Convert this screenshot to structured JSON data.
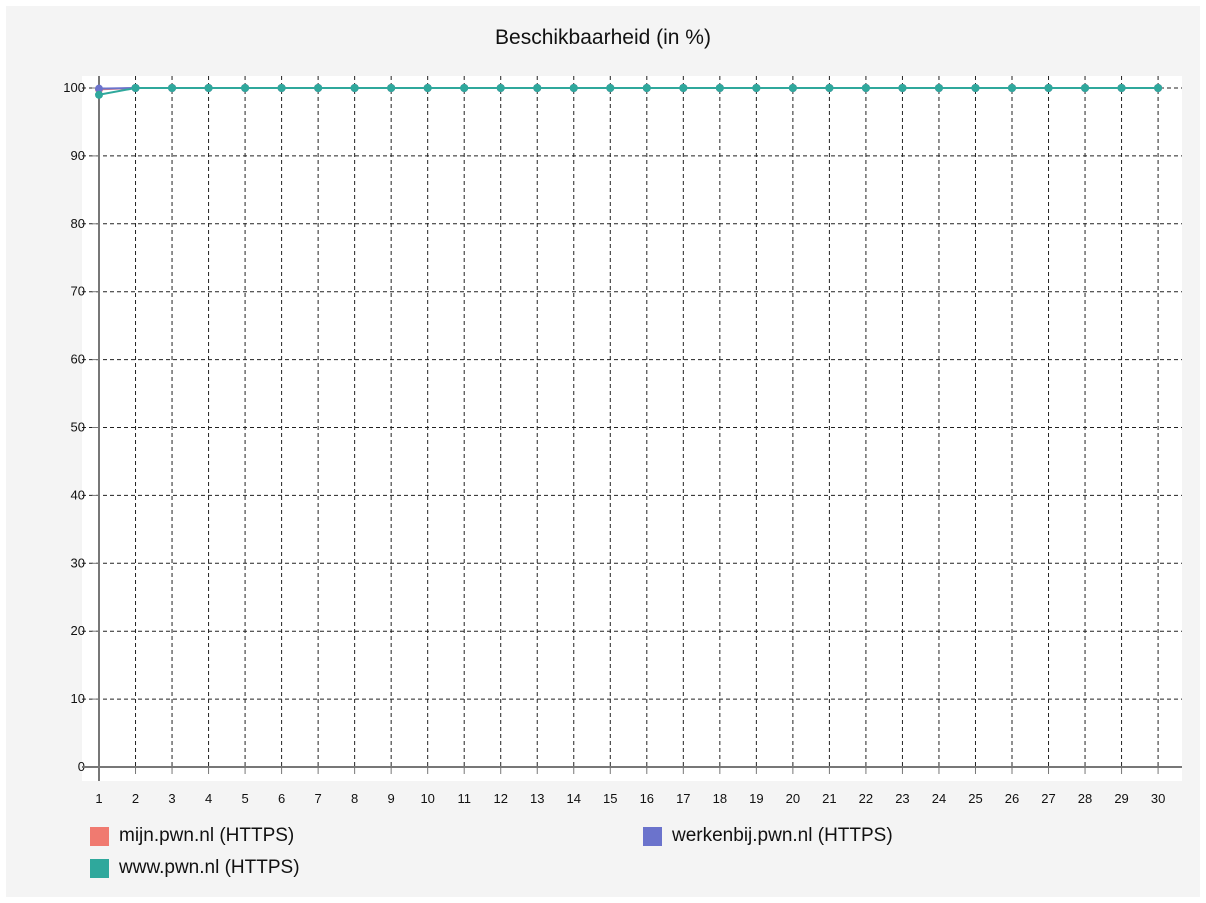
{
  "chart_data": {
    "type": "line",
    "title": "Beschikbaarheid (in %)",
    "xlabel": "",
    "ylabel": "",
    "x": [
      1,
      2,
      3,
      4,
      5,
      6,
      7,
      8,
      9,
      10,
      11,
      12,
      13,
      14,
      15,
      16,
      17,
      18,
      19,
      20,
      21,
      22,
      23,
      24,
      25,
      26,
      27,
      28,
      29,
      30
    ],
    "y_ticks": [
      0,
      10,
      20,
      30,
      40,
      50,
      60,
      70,
      80,
      90,
      100
    ],
    "ylim": [
      0,
      100
    ],
    "grid": true,
    "legend_position": "bottom",
    "series": [
      {
        "name": "mijn.pwn.nl (HTTPS)",
        "color": "#f07a70",
        "values": [
          99.8,
          100,
          100,
          100,
          100,
          100,
          100,
          100,
          100,
          100,
          100,
          100,
          100,
          100,
          100,
          100,
          100,
          100,
          100,
          100,
          100,
          100,
          100,
          100,
          100,
          100,
          100,
          100,
          100,
          100
        ]
      },
      {
        "name": "werkenbij.pwn.nl (HTTPS)",
        "color": "#6b73cc",
        "values": [
          99.9,
          100,
          100,
          100,
          100,
          100,
          100,
          100,
          100,
          100,
          100,
          100,
          100,
          100,
          100,
          100,
          100,
          100,
          100,
          100,
          100,
          100,
          100,
          100,
          100,
          100,
          100,
          100,
          100,
          100
        ]
      },
      {
        "name": "www.pwn.nl (HTTPS)",
        "color": "#2fa89c",
        "values": [
          99.0,
          100,
          100,
          100,
          100,
          100,
          100,
          100,
          100,
          100,
          100,
          100,
          100,
          100,
          100,
          100,
          100,
          100,
          100,
          100,
          100,
          100,
          100,
          100,
          100,
          100,
          100,
          100,
          100,
          100
        ]
      }
    ]
  }
}
